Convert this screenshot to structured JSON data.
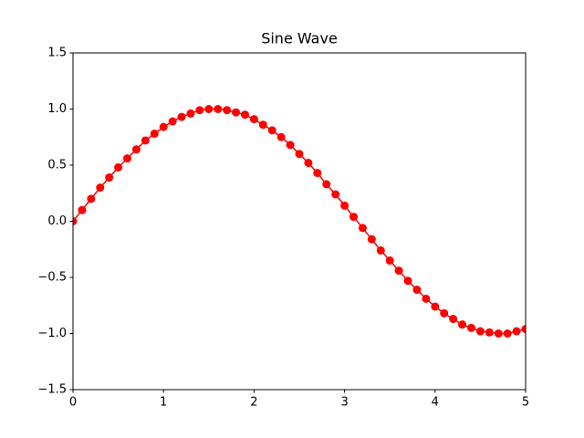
{
  "chart_data": {
    "type": "line",
    "title": "Sine Wave",
    "x": [
      0,
      0.1,
      0.2,
      0.3,
      0.4,
      0.5,
      0.6,
      0.7,
      0.8,
      0.9,
      1.0,
      1.1,
      1.2,
      1.3,
      1.4,
      1.5,
      1.6,
      1.7,
      1.8,
      1.9,
      2.0,
      2.1,
      2.2,
      2.3,
      2.4,
      2.5,
      2.6,
      2.7,
      2.8,
      2.9,
      3.0,
      3.1,
      3.2,
      3.3,
      3.4,
      3.5,
      3.6,
      3.7,
      3.8,
      3.9,
      4.0,
      4.1,
      4.2,
      4.3,
      4.4,
      4.5,
      4.6,
      4.7,
      4.8,
      4.9,
      5.0
    ],
    "values": [
      0,
      0.1,
      0.2,
      0.3,
      0.39,
      0.48,
      0.56,
      0.64,
      0.72,
      0.78,
      0.84,
      0.89,
      0.93,
      0.96,
      0.99,
      1.0,
      1.0,
      0.99,
      0.97,
      0.95,
      0.91,
      0.86,
      0.81,
      0.75,
      0.68,
      0.6,
      0.52,
      0.43,
      0.33,
      0.24,
      0.14,
      0.04,
      -0.06,
      -0.16,
      -0.26,
      -0.35,
      -0.44,
      -0.53,
      -0.61,
      -0.69,
      -0.76,
      -0.82,
      -0.87,
      -0.92,
      -0.95,
      -0.98,
      -0.99,
      -1.0,
      -1.0,
      -0.98,
      -0.96
    ],
    "color": "#ff0000",
    "xlim": [
      0,
      5
    ],
    "xticks": [
      0,
      1,
      2,
      3,
      4,
      5
    ],
    "ylim": [
      -1.5,
      1.5
    ],
    "yticks": [
      {
        "value": -1.5,
        "label": "−1.5"
      },
      {
        "value": -1.0,
        "label": "−1.0"
      },
      {
        "value": -0.5,
        "label": "−0.5"
      },
      {
        "value": 0,
        "label": "0.0"
      },
      {
        "value": 0.5,
        "label": "0.5"
      },
      {
        "value": 1.0,
        "label": "1.0"
      },
      {
        "value": 1.5,
        "label": "1.5"
      }
    ],
    "grid": false
  }
}
